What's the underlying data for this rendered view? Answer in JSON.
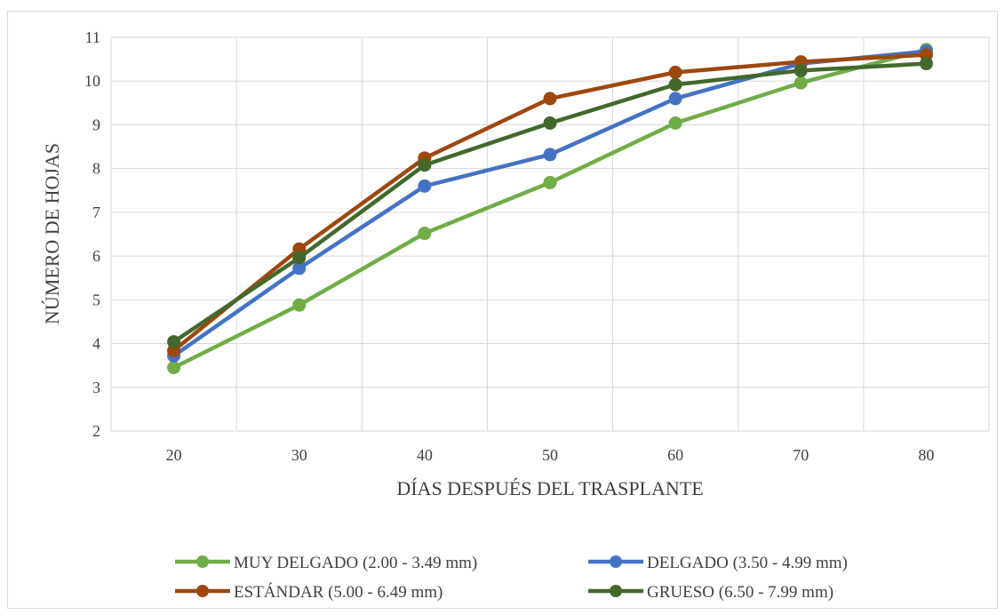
{
  "chart_data": {
    "type": "line",
    "title": "",
    "xlabel": "DÍAS DESPUÉS DEL TRASPLANTE",
    "ylabel": "NÚMERO DE HOJAS",
    "categories": [
      "20",
      "30",
      "40",
      "50",
      "60",
      "70",
      "80"
    ],
    "x": [
      20,
      30,
      40,
      50,
      60,
      70,
      80
    ],
    "ylim": [
      2,
      11
    ],
    "yticks": [
      "2",
      "3",
      "4",
      "5",
      "6",
      "7",
      "8",
      "9",
      "10",
      "11"
    ],
    "grid": true,
    "legend_position": "bottom",
    "series": [
      {
        "name": "MUY DELGADO (2.00 - 3.49 mm)",
        "color": "#70ad47",
        "values": [
          3.45,
          4.88,
          6.52,
          7.68,
          9.04,
          9.96,
          10.72
        ]
      },
      {
        "name": "DELGADO (3.50 - 4.99 mm)",
        "color": "#4472c4",
        "values": [
          3.72,
          5.72,
          7.6,
          8.32,
          9.6,
          10.4,
          10.68
        ]
      },
      {
        "name": "ESTÁNDAR (5.00 - 6.49 mm)",
        "color": "#9e480e",
        "values": [
          3.84,
          6.16,
          8.24,
          9.6,
          10.2,
          10.44,
          10.6
        ]
      },
      {
        "name": "GRUESO (6.50 - 7.99 mm)",
        "color": "#43682b",
        "values": [
          4.04,
          5.96,
          8.08,
          9.04,
          9.92,
          10.24,
          10.4
        ]
      }
    ]
  }
}
